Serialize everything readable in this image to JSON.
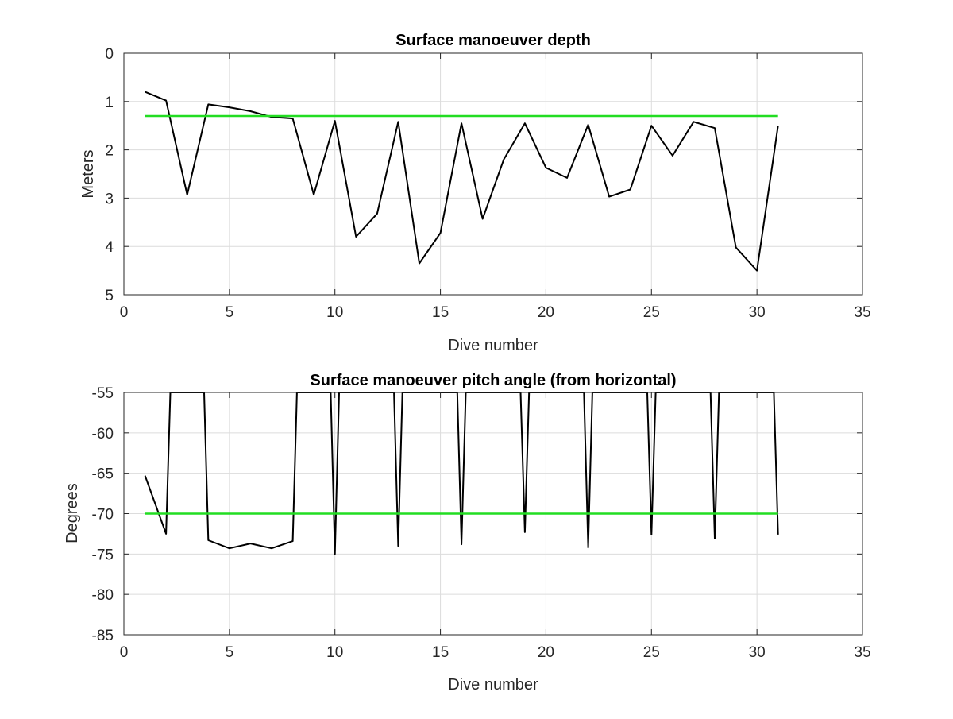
{
  "chart_data": [
    {
      "type": "line",
      "title": "Surface manoeuver depth",
      "xlabel": "Dive number",
      "ylabel": "Meters",
      "xlim": [
        0,
        35
      ],
      "ylim": [
        0,
        5
      ],
      "y_reversed": true,
      "grid": true,
      "x_ticks": [
        "0",
        "5",
        "10",
        "15",
        "20",
        "25",
        "30",
        "35"
      ],
      "y_ticks": [
        "0",
        "1",
        "2",
        "3",
        "4",
        "5"
      ],
      "series": [
        {
          "color": "#000000",
          "x": [
            1,
            2,
            3,
            4,
            5,
            6,
            7,
            8,
            9,
            10,
            11,
            12,
            13,
            14,
            15,
            16,
            17,
            18,
            19,
            20,
            21,
            22,
            23,
            24,
            25,
            26,
            27,
            28,
            29,
            30,
            31
          ],
          "y": [
            0.8,
            0.98,
            2.93,
            1.06,
            1.12,
            1.2,
            1.32,
            1.35,
            2.93,
            1.4,
            3.8,
            3.32,
            1.42,
            4.35,
            3.72,
            1.45,
            3.43,
            2.2,
            1.45,
            2.37,
            2.58,
            1.48,
            2.97,
            2.82,
            1.5,
            2.12,
            1.42,
            1.55,
            4.02,
            4.5,
            1.5
          ]
        },
        {
          "color": "#22dd22",
          "x": [
            1,
            31
          ],
          "y": [
            1.3,
            1.3
          ]
        }
      ]
    },
    {
      "type": "line",
      "title": "Surface manoeuver pitch angle (from horizontal)",
      "xlabel": "Dive number",
      "ylabel": "Degrees",
      "xlim": [
        0,
        35
      ],
      "ylim": [
        -85,
        -55
      ],
      "grid": true,
      "x_ticks": [
        "0",
        "5",
        "10",
        "15",
        "20",
        "25",
        "30",
        "35"
      ],
      "y_ticks": [
        "-55",
        "-60",
        "-65",
        "-70",
        "-75",
        "-80",
        "-85"
      ],
      "series": [
        {
          "color": "#000000",
          "x": [
            1,
            2,
            2.2,
            3.8,
            4,
            5,
            6,
            7,
            8,
            8.2,
            9.8,
            10,
            10.2,
            12.8,
            13,
            13.2,
            15.8,
            16,
            16.2,
            18.8,
            19,
            19.2,
            21.8,
            22,
            22.2,
            24.8,
            25,
            25.2,
            27.8,
            28,
            28.2,
            30.8,
            31
          ],
          "y": [
            -65.3,
            -72.5,
            -55,
            -55,
            -73.3,
            -74.3,
            -73.7,
            -74.3,
            -73.4,
            -55,
            -55,
            -75,
            -55,
            -55,
            -74,
            -55,
            -55,
            -73.8,
            -55,
            -55,
            -72.3,
            -55,
            -55,
            -74.2,
            -55,
            -55,
            -72.6,
            -55,
            -55,
            -73.1,
            -55,
            -55,
            -72.6
          ]
        },
        {
          "color": "#22dd22",
          "x": [
            1,
            31
          ],
          "y": [
            -70,
            -70
          ]
        }
      ]
    }
  ]
}
